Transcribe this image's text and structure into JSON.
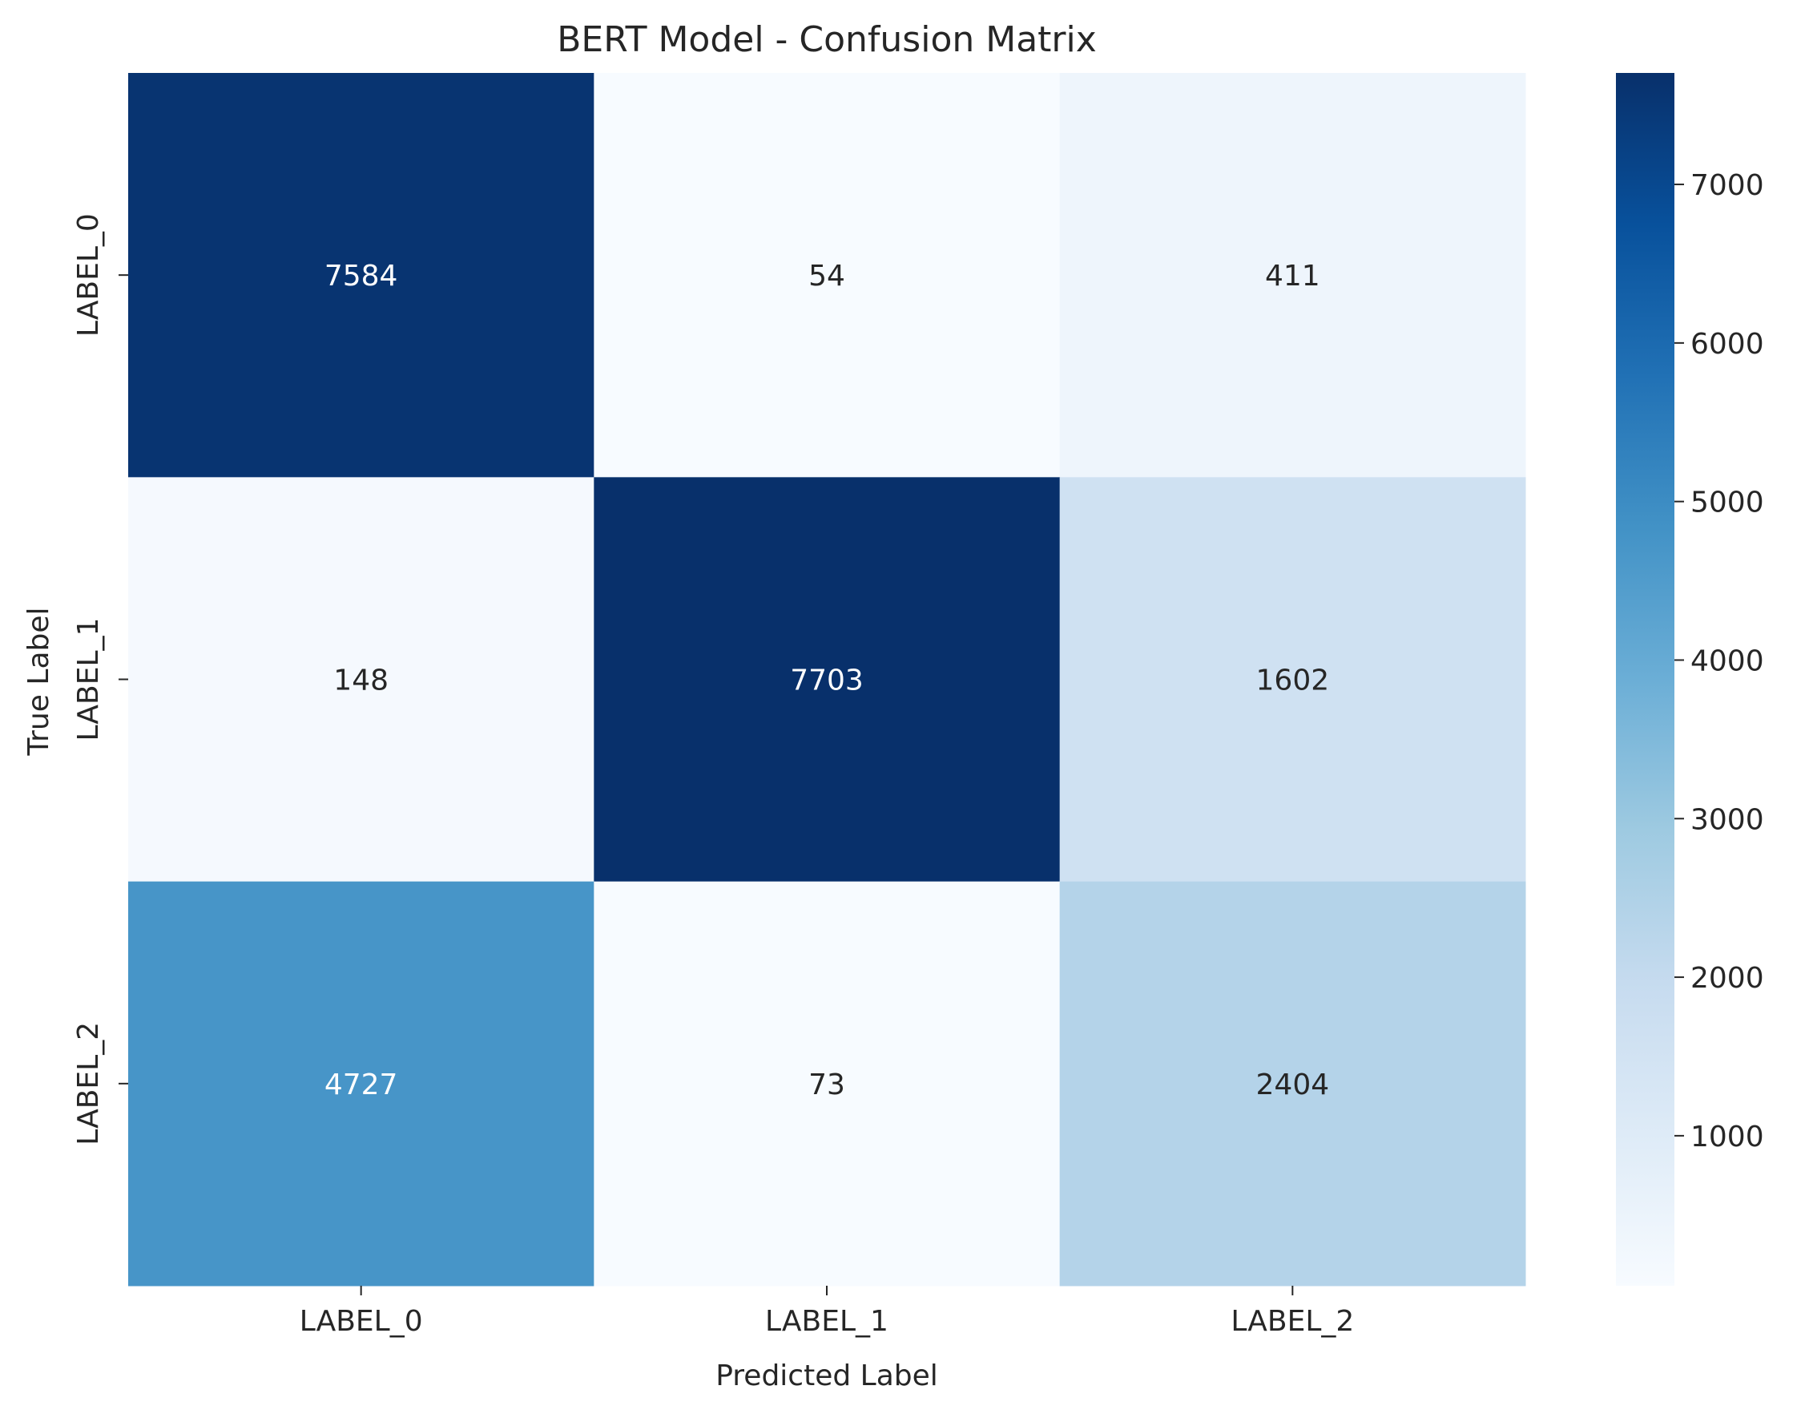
{
  "chart_data": {
    "type": "heatmap",
    "title": "BERT Model - Confusion Matrix",
    "xlabel": "Predicted Label",
    "ylabel": "True Label",
    "x_categories": [
      "LABEL_0",
      "LABEL_1",
      "LABEL_2"
    ],
    "y_categories": [
      "LABEL_0",
      "LABEL_1",
      "LABEL_2"
    ],
    "values": [
      [
        7584,
        54,
        411
      ],
      [
        148,
        7703,
        1602
      ],
      [
        4727,
        73,
        2404
      ]
    ],
    "colormap": "Blues",
    "colorbar": {
      "min": 54,
      "max": 7703,
      "ticks": [
        1000,
        2000,
        3000,
        4000,
        5000,
        6000,
        7000
      ],
      "tick_labels": [
        "1000",
        "2000",
        "3000",
        "4000",
        "5000",
        "6000",
        "7000"
      ]
    },
    "colors": {
      "text_dark": "#262626",
      "text_light": "#ffffff"
    }
  }
}
